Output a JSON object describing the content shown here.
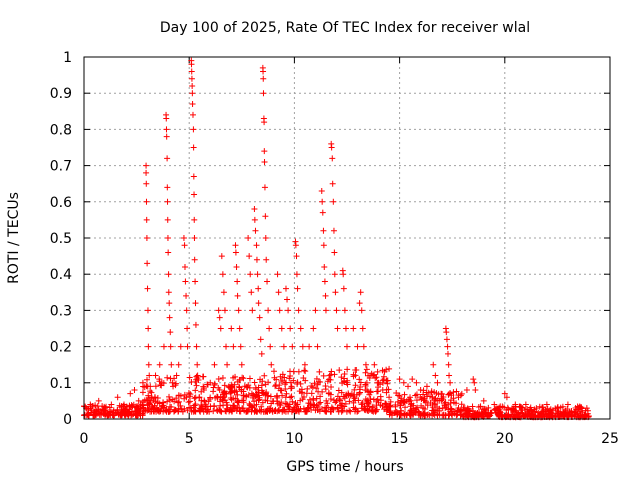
{
  "chart_data": {
    "type": "scatter",
    "title": "Day 100 of 2025, Rate Of TEC Index for receiver wlal",
    "xlabel": "GPS time / hours",
    "ylabel": "ROTI / TECUs",
    "xlim": [
      0,
      25
    ],
    "ylim": [
      0,
      1
    ],
    "xticks": [
      "0",
      "5",
      "10",
      "15",
      "20",
      "25"
    ],
    "yticks": [
      "0",
      "0.1",
      "0.2",
      "0.3",
      "0.4",
      "0.5",
      "0.6",
      "0.7",
      "0.8",
      "0.9",
      "1"
    ],
    "grid": true,
    "marker": "+",
    "series": [
      {
        "color": "#ff0000",
        "points": [
          [
            0.1,
            0.03
          ],
          [
            0.3,
            0.04
          ],
          [
            0.5,
            0.02
          ],
          [
            0.7,
            0.05
          ],
          [
            1.0,
            0.03
          ],
          [
            1.3,
            0.04
          ],
          [
            1.6,
            0.06
          ],
          [
            1.9,
            0.04
          ],
          [
            2.2,
            0.07
          ],
          [
            2.4,
            0.08
          ],
          [
            2.6,
            0.05
          ],
          [
            2.8,
            0.1
          ],
          [
            2.95,
            0.7
          ],
          [
            2.95,
            0.68
          ],
          [
            2.96,
            0.65
          ],
          [
            2.97,
            0.6
          ],
          [
            2.98,
            0.55
          ],
          [
            2.99,
            0.5
          ],
          [
            3.0,
            0.43
          ],
          [
            3.02,
            0.36
          ],
          [
            3.04,
            0.3
          ],
          [
            3.05,
            0.25
          ],
          [
            3.06,
            0.2
          ],
          [
            3.08,
            0.15
          ],
          [
            3.1,
            0.12
          ],
          [
            3.15,
            0.09
          ],
          [
            3.4,
            0.12
          ],
          [
            3.6,
            0.15
          ],
          [
            3.7,
            0.1
          ],
          [
            3.8,
            0.2
          ],
          [
            3.9,
            0.84
          ],
          [
            3.91,
            0.83
          ],
          [
            3.92,
            0.8
          ],
          [
            3.93,
            0.78
          ],
          [
            3.95,
            0.72
          ],
          [
            3.96,
            0.64
          ],
          [
            3.97,
            0.6
          ],
          [
            3.98,
            0.55
          ],
          [
            3.99,
            0.5
          ],
          [
            4.0,
            0.46
          ],
          [
            4.02,
            0.4
          ],
          [
            4.03,
            0.35
          ],
          [
            4.05,
            0.32
          ],
          [
            4.07,
            0.28
          ],
          [
            4.1,
            0.24
          ],
          [
            4.12,
            0.2
          ],
          [
            4.15,
            0.15
          ],
          [
            4.2,
            0.1
          ],
          [
            4.4,
            0.12
          ],
          [
            4.5,
            0.15
          ],
          [
            4.6,
            0.2
          ],
          [
            4.75,
            0.5
          ],
          [
            4.78,
            0.48
          ],
          [
            4.8,
            0.42
          ],
          [
            4.82,
            0.38
          ],
          [
            4.85,
            0.34
          ],
          [
            4.88,
            0.3
          ],
          [
            4.9,
            0.25
          ],
          [
            4.92,
            0.2
          ],
          [
            5.1,
            0.99
          ],
          [
            5.11,
            0.98
          ],
          [
            5.12,
            0.96
          ],
          [
            5.13,
            0.94
          ],
          [
            5.14,
            0.92
          ],
          [
            5.15,
            0.9
          ],
          [
            5.16,
            0.87
          ],
          [
            5.18,
            0.84
          ],
          [
            5.2,
            0.8
          ],
          [
            5.21,
            0.75
          ],
          [
            5.22,
            0.67
          ],
          [
            5.23,
            0.62
          ],
          [
            5.24,
            0.55
          ],
          [
            5.25,
            0.5
          ],
          [
            5.26,
            0.44
          ],
          [
            5.28,
            0.38
          ],
          [
            5.3,
            0.32
          ],
          [
            5.32,
            0.26
          ],
          [
            5.35,
            0.2
          ],
          [
            5.38,
            0.15
          ],
          [
            5.4,
            0.12
          ],
          [
            5.7,
            0.08
          ],
          [
            6.0,
            0.1
          ],
          [
            6.2,
            0.15
          ],
          [
            6.4,
            0.3
          ],
          [
            6.45,
            0.28
          ],
          [
            6.5,
            0.25
          ],
          [
            6.55,
            0.45
          ],
          [
            6.6,
            0.4
          ],
          [
            6.65,
            0.35
          ],
          [
            6.7,
            0.3
          ],
          [
            6.75,
            0.2
          ],
          [
            6.8,
            0.15
          ],
          [
            7.0,
            0.25
          ],
          [
            7.1,
            0.2
          ],
          [
            7.2,
            0.48
          ],
          [
            7.22,
            0.46
          ],
          [
            7.25,
            0.42
          ],
          [
            7.28,
            0.38
          ],
          [
            7.3,
            0.34
          ],
          [
            7.35,
            0.3
          ],
          [
            7.4,
            0.25
          ],
          [
            7.45,
            0.2
          ],
          [
            7.5,
            0.15
          ],
          [
            7.8,
            0.5
          ],
          [
            7.85,
            0.45
          ],
          [
            7.9,
            0.4
          ],
          [
            7.95,
            0.35
          ],
          [
            8.0,
            0.3
          ],
          [
            8.1,
            0.58
          ],
          [
            8.12,
            0.55
          ],
          [
            8.15,
            0.52
          ],
          [
            8.2,
            0.48
          ],
          [
            8.22,
            0.44
          ],
          [
            8.25,
            0.4
          ],
          [
            8.28,
            0.36
          ],
          [
            8.3,
            0.32
          ],
          [
            8.35,
            0.28
          ],
          [
            8.4,
            0.22
          ],
          [
            8.45,
            0.18
          ],
          [
            8.5,
            0.97
          ],
          [
            8.51,
            0.96
          ],
          [
            8.52,
            0.94
          ],
          [
            8.53,
            0.9
          ],
          [
            8.55,
            0.83
          ],
          [
            8.56,
            0.82
          ],
          [
            8.57,
            0.74
          ],
          [
            8.58,
            0.71
          ],
          [
            8.6,
            0.64
          ],
          [
            8.62,
            0.56
          ],
          [
            8.64,
            0.5
          ],
          [
            8.66,
            0.44
          ],
          [
            8.7,
            0.38
          ],
          [
            8.75,
            0.3
          ],
          [
            8.8,
            0.25
          ],
          [
            8.85,
            0.2
          ],
          [
            8.9,
            0.15
          ],
          [
            9.2,
            0.4
          ],
          [
            9.25,
            0.35
          ],
          [
            9.3,
            0.3
          ],
          [
            9.4,
            0.25
          ],
          [
            9.5,
            0.2
          ],
          [
            9.6,
            0.36
          ],
          [
            9.65,
            0.33
          ],
          [
            9.7,
            0.3
          ],
          [
            9.8,
            0.25
          ],
          [
            9.9,
            0.2
          ],
          [
            10.05,
            0.49
          ],
          [
            10.07,
            0.48
          ],
          [
            10.1,
            0.45
          ],
          [
            10.12,
            0.4
          ],
          [
            10.15,
            0.36
          ],
          [
            10.2,
            0.3
          ],
          [
            10.3,
            0.25
          ],
          [
            10.4,
            0.2
          ],
          [
            10.5,
            0.15
          ],
          [
            10.7,
            0.2
          ],
          [
            10.9,
            0.25
          ],
          [
            11.0,
            0.3
          ],
          [
            11.1,
            0.2
          ],
          [
            11.3,
            0.63
          ],
          [
            11.32,
            0.6
          ],
          [
            11.35,
            0.57
          ],
          [
            11.38,
            0.52
          ],
          [
            11.4,
            0.48
          ],
          [
            11.42,
            0.42
          ],
          [
            11.45,
            0.38
          ],
          [
            11.48,
            0.34
          ],
          [
            11.5,
            0.3
          ],
          [
            11.75,
            0.76
          ],
          [
            11.77,
            0.75
          ],
          [
            11.8,
            0.72
          ],
          [
            11.82,
            0.65
          ],
          [
            11.85,
            0.6
          ],
          [
            11.88,
            0.52
          ],
          [
            11.9,
            0.46
          ],
          [
            11.92,
            0.4
          ],
          [
            11.95,
            0.35
          ],
          [
            12.0,
            0.3
          ],
          [
            12.05,
            0.25
          ],
          [
            12.3,
            0.41
          ],
          [
            12.32,
            0.4
          ],
          [
            12.35,
            0.36
          ],
          [
            12.4,
            0.3
          ],
          [
            12.45,
            0.25
          ],
          [
            12.5,
            0.2
          ],
          [
            12.8,
            0.25
          ],
          [
            13.0,
            0.2
          ],
          [
            13.1,
            0.32
          ],
          [
            13.15,
            0.35
          ],
          [
            13.2,
            0.3
          ],
          [
            13.25,
            0.25
          ],
          [
            13.3,
            0.2
          ],
          [
            13.4,
            0.15
          ],
          [
            13.6,
            0.12
          ],
          [
            13.8,
            0.15
          ],
          [
            14.0,
            0.1
          ],
          [
            14.2,
            0.08
          ],
          [
            14.5,
            0.06
          ],
          [
            15.0,
            0.11
          ],
          [
            15.2,
            0.1
          ],
          [
            15.4,
            0.09
          ],
          [
            15.6,
            0.11
          ],
          [
            15.8,
            0.1
          ],
          [
            16.0,
            0.08
          ],
          [
            16.3,
            0.09
          ],
          [
            16.6,
            0.15
          ],
          [
            16.7,
            0.12
          ],
          [
            16.8,
            0.1
          ],
          [
            17.2,
            0.25
          ],
          [
            17.22,
            0.24
          ],
          [
            17.25,
            0.22
          ],
          [
            17.28,
            0.2
          ],
          [
            17.3,
            0.18
          ],
          [
            17.33,
            0.15
          ],
          [
            17.35,
            0.12
          ],
          [
            17.4,
            0.1
          ],
          [
            17.8,
            0.06
          ],
          [
            18.2,
            0.08
          ],
          [
            18.5,
            0.11
          ],
          [
            18.55,
            0.1
          ],
          [
            18.6,
            0.08
          ],
          [
            19.0,
            0.05
          ],
          [
            19.5,
            0.04
          ],
          [
            20.0,
            0.07
          ],
          [
            20.1,
            0.06
          ],
          [
            20.5,
            0.04
          ],
          [
            21.0,
            0.04
          ],
          [
            21.5,
            0.03
          ],
          [
            22.0,
            0.04
          ],
          [
            22.5,
            0.03
          ],
          [
            23.0,
            0.04
          ],
          [
            23.5,
            0.03
          ],
          [
            23.9,
            0.03
          ]
        ],
        "bands": [
          [
            0,
            2.8,
            0.01,
            0.04
          ],
          [
            2.8,
            9.0,
            0.02,
            0.12
          ],
          [
            9.0,
            14.5,
            0.02,
            0.14
          ],
          [
            14.5,
            18.0,
            0.01,
            0.08
          ],
          [
            18.0,
            24.0,
            0.005,
            0.035
          ]
        ]
      }
    ]
  }
}
